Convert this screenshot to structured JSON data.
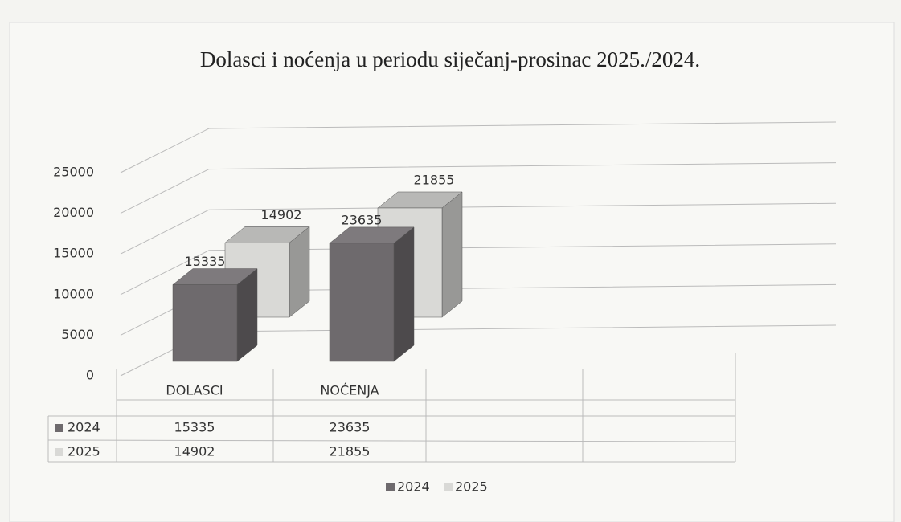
{
  "chart_data": {
    "type": "bar3d",
    "title": "Dolasci i noćenja u periodu siječanj-prosinac 2025./2024.",
    "categories": [
      "DOLASCI",
      "NOĆENJA"
    ],
    "series": [
      {
        "name": "2024",
        "color": "#6e6a6d",
        "values": [
          15335,
          23635
        ]
      },
      {
        "name": "2025",
        "color": "#d9d9d6",
        "values": [
          14902,
          21855
        ]
      }
    ],
    "ylim": [
      0,
      25000
    ],
    "yticks": [
      0,
      5000,
      10000,
      15000,
      20000,
      25000
    ],
    "grid": true,
    "data_table": true,
    "legend": "bottom"
  }
}
